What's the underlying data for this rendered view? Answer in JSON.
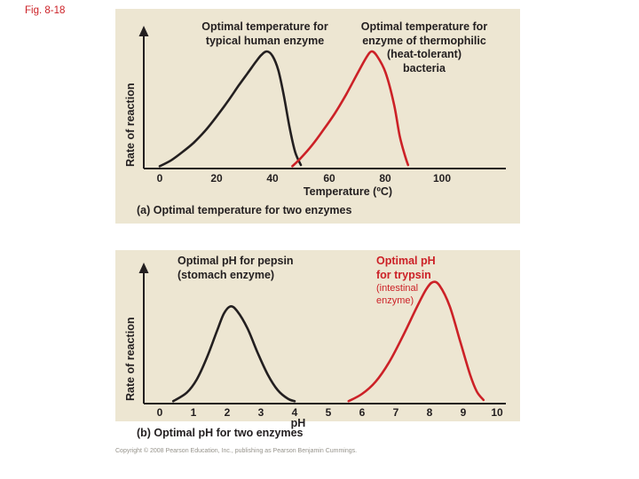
{
  "figure": {
    "label": "Fig. 8-18"
  },
  "colors": {
    "panel_bg": "#ede6d2",
    "curve_black": "#231f20",
    "curve_red": "#cc2127",
    "label_red": "#cc2127",
    "fig_label_red": "#cc2127",
    "axis": "#231f20"
  },
  "panel_a": {
    "label_human": "Optimal temperature for\ntypical human enzyme",
    "label_thermophilic": "Optimal temperature for\nenzyme of thermophilic\n(heat-tolerant)\nbacteria",
    "ylabel": "Rate of reaction",
    "xlabel": "Temperature (ºC)",
    "ticks": [
      "0",
      "20",
      "40",
      "60",
      "80",
      "100"
    ],
    "caption": "(a) Optimal temperature for two enzymes"
  },
  "panel_b": {
    "label_pepsin": "Optimal pH for pepsin\n(stomach enzyme)",
    "label_trypsin_bold": "Optimal pH\nfor trypsin",
    "label_trypsin_small": "(intestinal\nenzyme)",
    "ylabel": "Rate of reaction",
    "xlabel": "pH",
    "ticks": [
      "0",
      "1",
      "2",
      "3",
      "4",
      "5",
      "6",
      "7",
      "8",
      "9",
      "10"
    ],
    "caption": "(b) Optimal pH for two enzymes"
  },
  "copyright": "Copyright © 2008 Pearson Education, Inc., publishing as Pearson Benjamin Cummings.",
  "chart_data": [
    {
      "type": "line",
      "title": "Optimal temperature for two enzymes",
      "xlabel": "Temperature (ºC)",
      "ylabel": "Rate of reaction",
      "xlim": [
        0,
        100
      ],
      "ylim": [
        0,
        1
      ],
      "xticks": [
        0,
        20,
        40,
        60,
        80,
        100
      ],
      "grid": false,
      "legend": "none",
      "series": [
        {
          "name": "typical human enzyme",
          "color": "#231f20",
          "optimum_x": 38,
          "points": [
            [
              0,
              0.02
            ],
            [
              4,
              0.07
            ],
            [
              8,
              0.14
            ],
            [
              12,
              0.22
            ],
            [
              16,
              0.32
            ],
            [
              20,
              0.44
            ],
            [
              24,
              0.57
            ],
            [
              28,
              0.71
            ],
            [
              31,
              0.81
            ],
            [
              34,
              0.91
            ],
            [
              36,
              0.97
            ],
            [
              38,
              1.0
            ],
            [
              40,
              0.96
            ],
            [
              42,
              0.84
            ],
            [
              44,
              0.62
            ],
            [
              46,
              0.35
            ],
            [
              48,
              0.14
            ],
            [
              50,
              0.03
            ]
          ]
        },
        {
          "name": "thermophilic bacteria enzyme",
          "color": "#cc2127",
          "optimum_x": 75,
          "points": [
            [
              47,
              0.02
            ],
            [
              50,
              0.09
            ],
            [
              54,
              0.2
            ],
            [
              58,
              0.33
            ],
            [
              62,
              0.47
            ],
            [
              66,
              0.63
            ],
            [
              70,
              0.81
            ],
            [
              73,
              0.94
            ],
            [
              75,
              1.0
            ],
            [
              77,
              0.96
            ],
            [
              80,
              0.82
            ],
            [
              83,
              0.55
            ],
            [
              85,
              0.28
            ],
            [
              87,
              0.1
            ],
            [
              88,
              0.03
            ]
          ]
        }
      ]
    },
    {
      "type": "line",
      "title": "Optimal pH for two enzymes",
      "xlabel": "pH",
      "ylabel": "Rate of reaction",
      "xlim": [
        0,
        10
      ],
      "ylim": [
        0,
        1
      ],
      "xticks": [
        0,
        1,
        2,
        3,
        4,
        5,
        6,
        7,
        8,
        9,
        10
      ],
      "grid": false,
      "legend": "none",
      "series": [
        {
          "name": "pepsin (stomach enzyme)",
          "color": "#231f20",
          "optimum_x": 2,
          "points": [
            [
              0.4,
              0.02
            ],
            [
              0.8,
              0.09
            ],
            [
              1.1,
              0.2
            ],
            [
              1.4,
              0.38
            ],
            [
              1.7,
              0.6
            ],
            [
              1.9,
              0.74
            ],
            [
              2.1,
              0.8
            ],
            [
              2.3,
              0.76
            ],
            [
              2.6,
              0.62
            ],
            [
              2.9,
              0.42
            ],
            [
              3.2,
              0.24
            ],
            [
              3.5,
              0.11
            ],
            [
              3.8,
              0.04
            ],
            [
              4.0,
              0.02
            ]
          ]
        },
        {
          "name": "trypsin (intestinal enzyme)",
          "color": "#cc2127",
          "optimum_x": 8,
          "points": [
            [
              5.6,
              0.02
            ],
            [
              6.0,
              0.08
            ],
            [
              6.4,
              0.18
            ],
            [
              6.8,
              0.34
            ],
            [
              7.2,
              0.55
            ],
            [
              7.6,
              0.78
            ],
            [
              7.9,
              0.94
            ],
            [
              8.1,
              1.0
            ],
            [
              8.3,
              0.97
            ],
            [
              8.6,
              0.8
            ],
            [
              8.9,
              0.52
            ],
            [
              9.2,
              0.24
            ],
            [
              9.4,
              0.1
            ],
            [
              9.6,
              0.03
            ]
          ]
        }
      ]
    }
  ]
}
